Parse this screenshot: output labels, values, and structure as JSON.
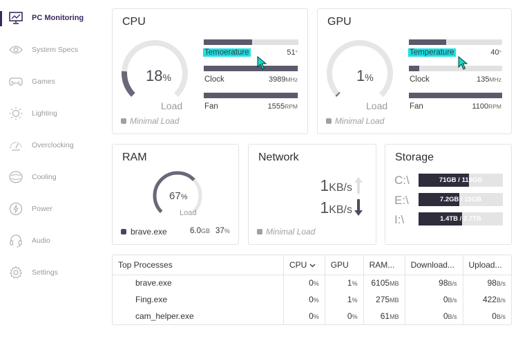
{
  "sidebar": {
    "items": [
      {
        "label": "PC Monitoring",
        "icon": "monitor-icon",
        "active": true
      },
      {
        "label": "System Specs",
        "icon": "eye-icon"
      },
      {
        "label": "Games",
        "icon": "gamepad-icon"
      },
      {
        "label": "Lighting",
        "icon": "sun-icon"
      },
      {
        "label": "Overclocking",
        "icon": "speedometer-icon"
      },
      {
        "label": "Cooling",
        "icon": "cooling-icon"
      },
      {
        "label": "Power",
        "icon": "power-icon"
      },
      {
        "label": "Audio",
        "icon": "headset-icon"
      },
      {
        "label": "Settings",
        "icon": "gear-icon"
      }
    ]
  },
  "cpu": {
    "title": "CPU",
    "load_value": "18",
    "load_unit": "%",
    "load_label": "Load",
    "load_fraction": 0.18,
    "status": "Minimal Load",
    "temperature_label": "Temoerature",
    "temperature_value": "51",
    "temperature_unit": "°",
    "temperature_fraction": 0.51,
    "clock_label": "Clock",
    "clock_value": "3989",
    "clock_unit": "MHz",
    "clock_fraction": 0.99,
    "fan_label": "Fan",
    "fan_value": "1555",
    "fan_unit": "RPM",
    "fan_fraction": 0.99
  },
  "gpu": {
    "title": "GPU",
    "load_value": "1",
    "load_unit": "%",
    "load_label": "Load",
    "load_fraction": 0.01,
    "status": "Minimal Load",
    "temperature_label": "Temperature",
    "temperature_value": "40",
    "temperature_unit": "°",
    "temperature_fraction": 0.4,
    "clock_label": "Clock",
    "clock_value": "135",
    "clock_unit": "MHz",
    "clock_fraction": 0.11,
    "fan_label": "Fan",
    "fan_value": "1100",
    "fan_unit": "RPM",
    "fan_fraction": 1.0
  },
  "ram": {
    "title": "RAM",
    "load_value": "67",
    "load_unit": "%",
    "load_label": "Load",
    "load_fraction": 0.67,
    "top_process": "brave.exe",
    "top_process_mem": "6.0",
    "top_process_mem_unit": "GB",
    "top_process_pct": "37",
    "top_process_pct_unit": "%"
  },
  "network": {
    "title": "Network",
    "up_value": "1",
    "up_unit": "KB/s",
    "down_value": "1",
    "down_unit": "KB/s",
    "status": "Minimal Load"
  },
  "storage": {
    "title": "Storage",
    "drives": [
      {
        "letter": "C:\\",
        "label": "71GB / 119GB",
        "fraction": 0.6
      },
      {
        "letter": "E:\\",
        "label": "7.2GB / 15GB",
        "fraction": 0.48
      },
      {
        "letter": "I:\\",
        "label": "1.4TB / 2.7TB",
        "fraction": 0.52
      }
    ]
  },
  "processes": {
    "headers": [
      "Top Processes",
      "CPU",
      "GPU",
      "RAM...",
      "Download...",
      "Upload..."
    ],
    "sort_indicator": "chevron-down-icon",
    "rows": [
      {
        "name": "brave.exe",
        "cpu": "0",
        "gpu": "1",
        "ram": "6105",
        "ram_unit": "MB",
        "down": "98",
        "down_unit": "B/s",
        "up": "98",
        "up_unit": "B/s"
      },
      {
        "name": "Fing.exe",
        "cpu": "0",
        "gpu": "1",
        "ram": "275",
        "ram_unit": "MB",
        "down": "0",
        "down_unit": "B/s",
        "up": "422",
        "up_unit": "B/s"
      },
      {
        "name": "cam_helper.exe",
        "cpu": "0",
        "gpu": "0",
        "ram": "61",
        "ram_unit": "MB",
        "down": "0",
        "down_unit": "B/s",
        "up": "0",
        "up_unit": "B/s"
      }
    ]
  },
  "colors": {
    "accent": "#3b2a5e",
    "bar_fill": "#5c5a6a",
    "bar_track": "#e1e1e1",
    "highlight": "#14e3e7",
    "storage_fill": "#2f2c3c"
  }
}
